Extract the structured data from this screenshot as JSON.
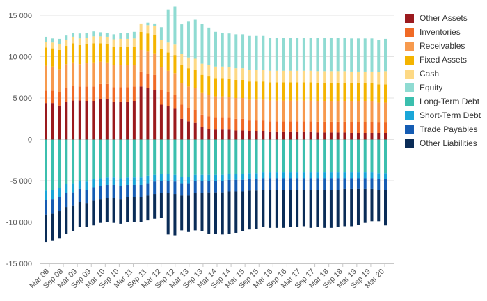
{
  "chart_data": {
    "type": "bar",
    "stacked": true,
    "x_tick_labels": [
      "Mar 08",
      "Sep 08",
      "Mar 09",
      "Sep 09",
      "Mar 10",
      "Sep 10",
      "Mar 11",
      "Sep 11",
      "Mar 12",
      "Sep 12",
      "Mar 13",
      "Sep 13",
      "Mar 14",
      "Sep 14",
      "Mar 15",
      "Sep 15",
      "Mar 16",
      "Sep 16",
      "Mar 17",
      "Sep 17",
      "Mar 18",
      "Sep 18",
      "Mar 19",
      "Sep 19",
      "Mar 20"
    ],
    "y_tick_labels": [
      "15 000",
      "10 000",
      "5 000",
      "0",
      "-5 000",
      "-10 000",
      "-15 000"
    ],
    "ylim": [
      -15000,
      15000
    ],
    "grid": true,
    "legend_position": "right",
    "series": [
      {
        "name": "Other Assets",
        "color": "#9b1a1e",
        "values": [
          4400,
          4400,
          4100,
          4500,
          4700,
          4700,
          4600,
          4600,
          4900,
          4900,
          4500,
          4500,
          4500,
          4600,
          6400,
          6200,
          6000,
          4200,
          4000,
          3700,
          2500,
          2200,
          2000,
          1500,
          1300,
          1200,
          1200,
          1200,
          1100,
          1100,
          1000,
          1000,
          1000,
          900,
          900,
          900,
          900,
          900,
          900,
          900,
          850,
          850,
          850,
          850,
          850,
          800,
          800,
          800,
          800,
          750,
          750
        ]
      },
      {
        "name": "Inventories",
        "color": "#f06a26",
        "values": [
          1500,
          1500,
          1600,
          1700,
          1800,
          1700,
          1800,
          1800,
          1800,
          1800,
          1800,
          1800,
          1800,
          1800,
          1800,
          1700,
          1800,
          1800,
          1700,
          1700,
          1700,
          1600,
          1600,
          1500,
          1500,
          1400,
          1400,
          1400,
          1400,
          1400,
          1300,
          1300,
          1300,
          1300,
          1300,
          1300,
          1300,
          1300,
          1300,
          1300,
          1300,
          1300,
          1300,
          1300,
          1300,
          1300,
          1300,
          1300,
          1300,
          1300,
          1300
        ]
      },
      {
        "name": "Receivables",
        "color": "#f79a4e",
        "values": [
          3000,
          2900,
          2800,
          2900,
          2800,
          2700,
          2800,
          2900,
          2700,
          2600,
          2700,
          2700,
          2700,
          2600,
          2600,
          2700,
          2600,
          2700,
          2600,
          2600,
          2600,
          2600,
          2600,
          2600,
          2600,
          2600,
          2600,
          2500,
          2500,
          2500,
          2500,
          2500,
          2500,
          2500,
          2500,
          2500,
          2500,
          2500,
          2500,
          2500,
          2500,
          2500,
          2500,
          2500,
          2500,
          2500,
          2500,
          2500,
          2500,
          2400,
          2400
        ]
      },
      {
        "name": "Fixed Assets",
        "color": "#f4b400",
        "values": [
          2200,
          2200,
          2300,
          2200,
          2300,
          2300,
          2300,
          2300,
          2200,
          2200,
          2200,
          2200,
          2200,
          2200,
          2200,
          2200,
          2200,
          2200,
          2200,
          2200,
          2200,
          2200,
          2200,
          2200,
          2200,
          2200,
          2200,
          2200,
          2200,
          2200,
          2200,
          2200,
          2200,
          2200,
          2200,
          2200,
          2200,
          2200,
          2200,
          2200,
          2200,
          2200,
          2200,
          2200,
          2200,
          2200,
          2200,
          2200,
          2200,
          2200,
          2200
        ]
      },
      {
        "name": "Cash",
        "color": "#fdd985",
        "values": [
          700,
          700,
          750,
          750,
          800,
          800,
          800,
          850,
          850,
          900,
          900,
          950,
          950,
          1000,
          1000,
          1000,
          1100,
          1150,
          1200,
          1250,
          1300,
          1300,
          1350,
          1350,
          1400,
          1400,
          1400,
          1400,
          1400,
          1400,
          1400,
          1400,
          1400,
          1400,
          1400,
          1400,
          1400,
          1400,
          1400,
          1400,
          1400,
          1400,
          1400,
          1400,
          1400,
          1400,
          1400,
          1400,
          1400,
          1500,
          1600
        ]
      },
      {
        "name": "Equity",
        "color": "#8fdbd2",
        "values": [
          600,
          500,
          600,
          500,
          500,
          600,
          600,
          600,
          500,
          500,
          600,
          700,
          700,
          800,
          0,
          300,
          300,
          1500,
          4000,
          4600,
          3600,
          4400,
          4700,
          4800,
          4500,
          4200,
          4100,
          4100,
          4100,
          4100,
          4100,
          4100,
          4100,
          4000,
          4000,
          4000,
          4000,
          4000,
          4000,
          4000,
          4000,
          4000,
          4000,
          4000,
          4000,
          4000,
          4000,
          4000,
          4000,
          3900,
          3900
        ]
      },
      {
        "name": "Long-Term Debt",
        "color": "#3bbfae",
        "values": [
          -6200,
          -6100,
          -5900,
          -5400,
          -5300,
          -5000,
          -5100,
          -4800,
          -4700,
          -4600,
          -4600,
          -4700,
          -4600,
          -4600,
          -4600,
          -4400,
          -4300,
          -4200,
          -4200,
          -4300,
          -4500,
          -4500,
          -4300,
          -4300,
          -4300,
          -4300,
          -4300,
          -4200,
          -4200,
          -4200,
          -4100,
          -4100,
          -4000,
          -4000,
          -4000,
          -4000,
          -4000,
          -4000,
          -4000,
          -4000,
          -4000,
          -4000,
          -4000,
          -4000,
          -4000,
          -4000,
          -4000,
          -4000,
          -4000,
          -4100,
          -4100
        ]
      },
      {
        "name": "Short-Term Debt",
        "color": "#1aa6d8",
        "values": [
          -1100,
          -1100,
          -1100,
          -1100,
          -1100,
          -1000,
          -1000,
          -1000,
          -900,
          -900,
          -900,
          -900,
          -900,
          -900,
          -900,
          -900,
          -800,
          -800,
          -800,
          -800,
          -800,
          -800,
          -700,
          -700,
          -700,
          -700,
          -700,
          -700,
          -700,
          -700,
          -700,
          -700,
          -700,
          -700,
          -700,
          -700,
          -700,
          -700,
          -700,
          -700,
          -700,
          -700,
          -700,
          -700,
          -700,
          -700,
          -700,
          -700,
          -700,
          -700,
          -700
        ]
      },
      {
        "name": "Trade Payables",
        "color": "#155cb3",
        "values": [
          -1800,
          -1800,
          -1700,
          -1700,
          -1600,
          -1600,
          -1600,
          -1600,
          -1600,
          -1600,
          -1600,
          -1600,
          -1500,
          -1500,
          -1500,
          -1500,
          -1500,
          -1500,
          -1500,
          -1500,
          -1500,
          -1500,
          -1500,
          -1500,
          -1400,
          -1400,
          -1400,
          -1400,
          -1400,
          -1400,
          -1400,
          -1400,
          -1400,
          -1400,
          -1400,
          -1400,
          -1400,
          -1400,
          -1400,
          -1400,
          -1400,
          -1400,
          -1400,
          -1400,
          -1300,
          -1300,
          -1300,
          -1300,
          -1300,
          -1300,
          -1300
        ]
      },
      {
        "name": "Other Liabilities",
        "color": "#0a2c57",
        "values": [
          -3300,
          -3200,
          -3300,
          -3200,
          -3100,
          -3000,
          -2900,
          -3000,
          -2900,
          -2900,
          -3000,
          -3000,
          -3000,
          -3000,
          -3000,
          -3000,
          -3000,
          -3000,
          -5000,
          -5000,
          -4200,
          -4400,
          -4500,
          -4600,
          -5000,
          -5000,
          -5100,
          -5100,
          -5000,
          -4800,
          -4700,
          -4600,
          -4500,
          -4600,
          -4600,
          -4600,
          -4500,
          -4500,
          -4400,
          -4600,
          -4500,
          -4600,
          -4600,
          -4500,
          -4500,
          -4500,
          -4300,
          -4100,
          -3900,
          -3800,
          -4300
        ]
      }
    ]
  }
}
